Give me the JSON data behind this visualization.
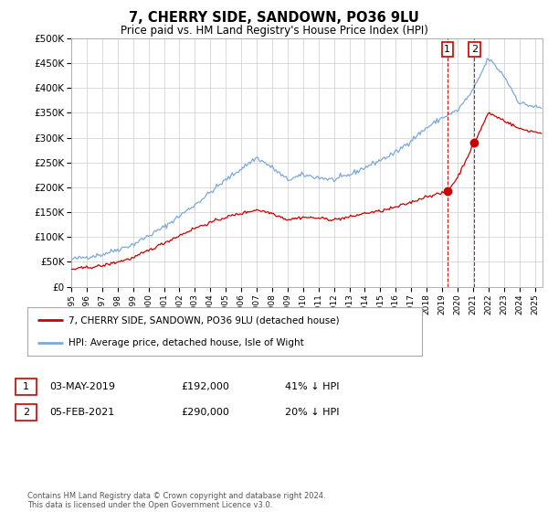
{
  "title": "7, CHERRY SIDE, SANDOWN, PO36 9LU",
  "subtitle": "Price paid vs. HM Land Registry's House Price Index (HPI)",
  "ylabel_ticks": [
    "£0",
    "£50K",
    "£100K",
    "£150K",
    "£200K",
    "£250K",
    "£300K",
    "£350K",
    "£400K",
    "£450K",
    "£500K"
  ],
  "ytick_values": [
    0,
    50000,
    100000,
    150000,
    200000,
    250000,
    300000,
    350000,
    400000,
    450000,
    500000
  ],
  "ylim": [
    0,
    500000
  ],
  "xlim_start": 1995.0,
  "xlim_end": 2025.5,
  "xtick_labels": [
    "1995",
    "1996",
    "1997",
    "1998",
    "1999",
    "2000",
    "2001",
    "2002",
    "2003",
    "2004",
    "2005",
    "2006",
    "2007",
    "2008",
    "2009",
    "2010",
    "2011",
    "2012",
    "2013",
    "2014",
    "2015",
    "2016",
    "2017",
    "2018",
    "2019",
    "2020",
    "2021",
    "2022",
    "2023",
    "2024",
    "2025"
  ],
  "hpi_color": "#7aaadd",
  "price_color": "#cc0000",
  "marker_color": "#cc0000",
  "dashed_line_color": "#cc0000",
  "point1_x": 2019.34,
  "point1_y": 192000,
  "point2_x": 2021.09,
  "point2_y": 290000,
  "legend_label_red": "7, CHERRY SIDE, SANDOWN, PO36 9LU (detached house)",
  "legend_label_blue": "HPI: Average price, detached house, Isle of Wight",
  "table_row1_num": "1",
  "table_row1_date": "03-MAY-2019",
  "table_row1_price": "£192,000",
  "table_row1_hpi": "41% ↓ HPI",
  "table_row2_num": "2",
  "table_row2_date": "05-FEB-2021",
  "table_row2_price": "£290,000",
  "table_row2_hpi": "20% ↓ HPI",
  "footer": "Contains HM Land Registry data © Crown copyright and database right 2024.\nThis data is licensed under the Open Government Licence v3.0.",
  "bg_color": "#ffffff",
  "grid_color": "#cccccc"
}
